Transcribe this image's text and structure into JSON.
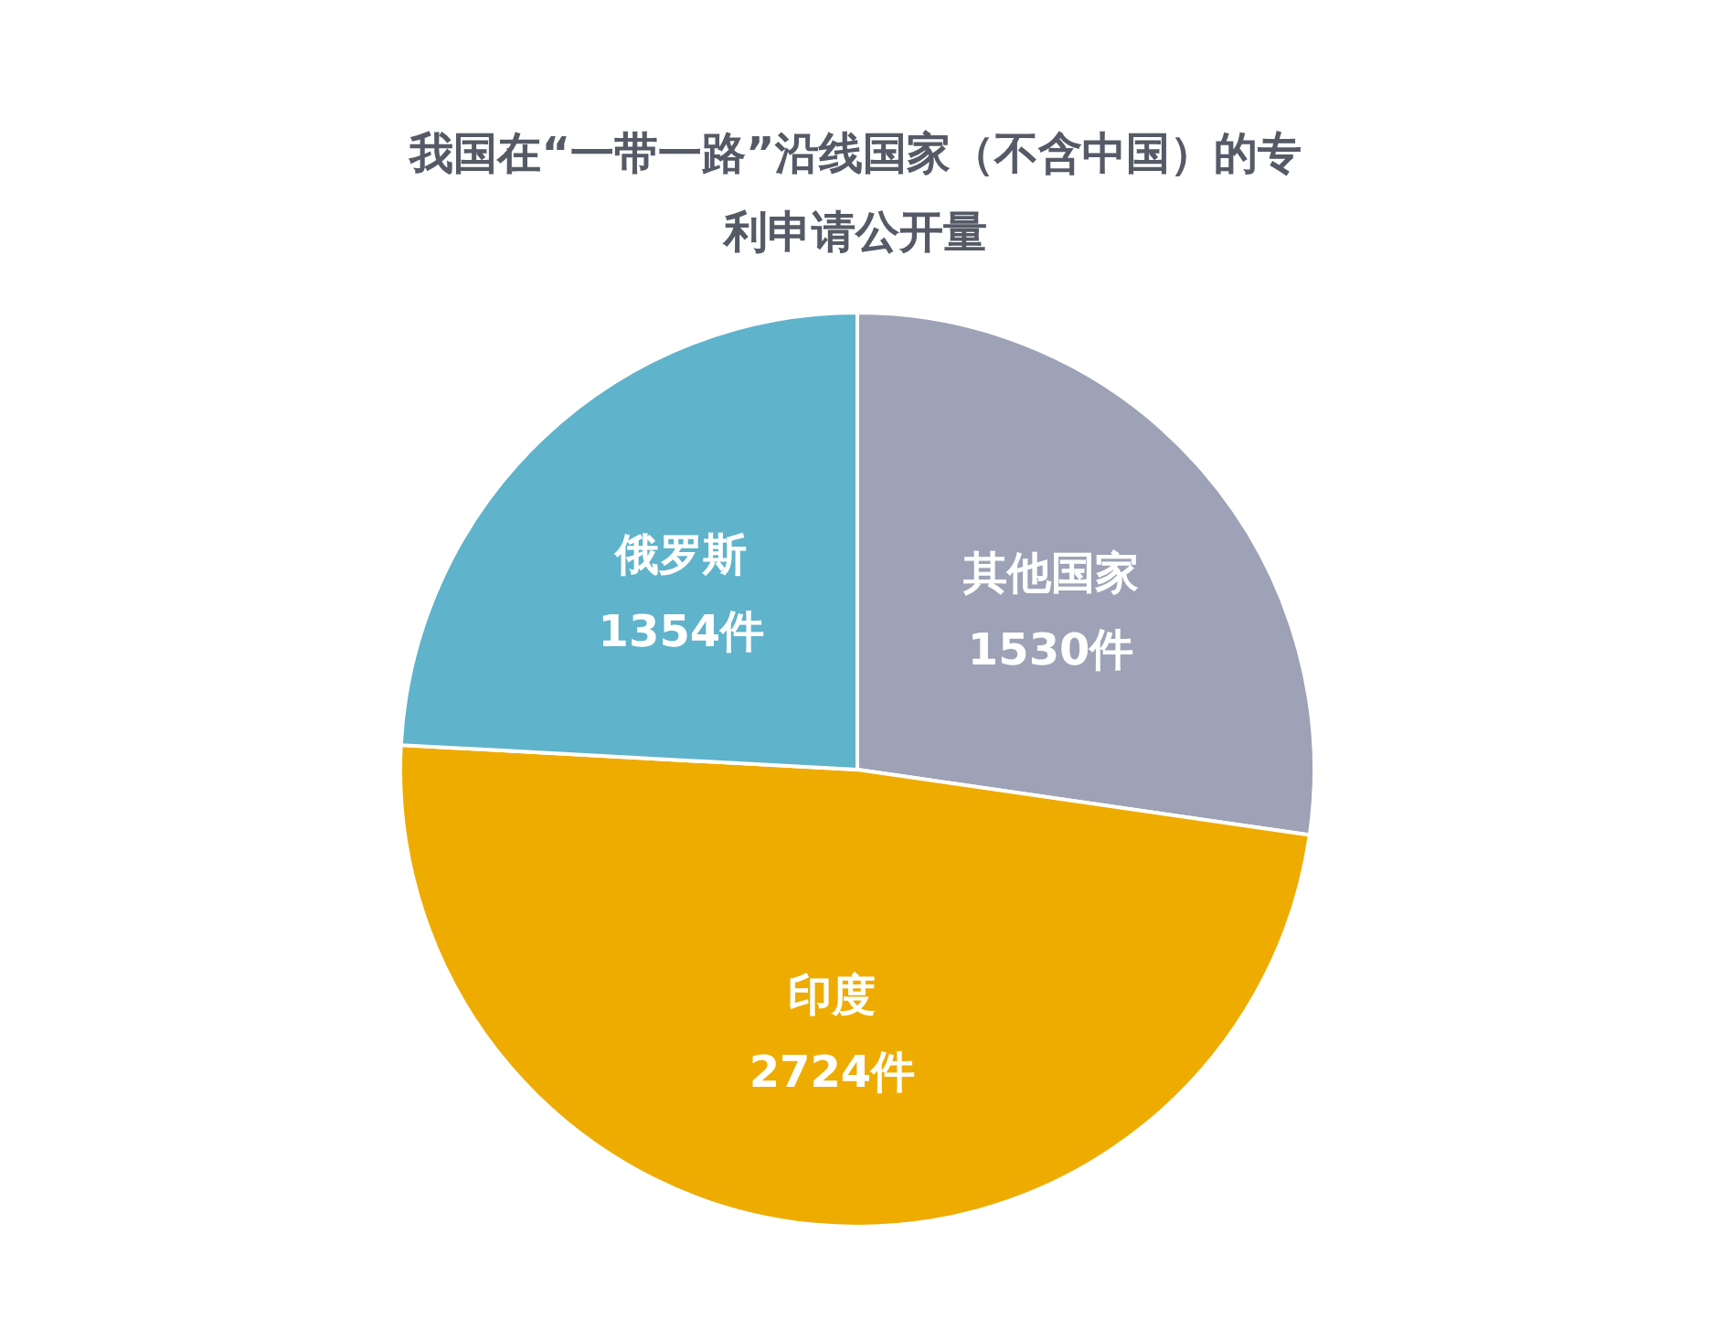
{
  "chart_data": {
    "type": "pie",
    "title": "我国在“一带一路”沿线国家（不含中国）的专利申请公开量",
    "categories": [
      "其他国家",
      "印度",
      "俄罗斯"
    ],
    "values": [
      1530,
      2724,
      1354
    ],
    "value_labels": [
      "1530件",
      "2724件",
      "1354件"
    ],
    "colors": [
      "#9da2b6",
      "#eeac00",
      "#5fb3cb"
    ],
    "legend": false
  }
}
